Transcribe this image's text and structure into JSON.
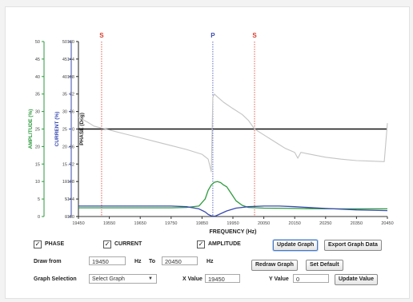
{
  "chart_data": {
    "type": "line",
    "xlabel": "FREQUENCY (Hz)",
    "xlim": [
      19450,
      20450
    ],
    "x_ticks": [
      19450,
      19550,
      19650,
      19750,
      19850,
      19950,
      20050,
      20150,
      20250,
      20350,
      20450
    ],
    "axes": {
      "amplitude": {
        "label": "AMPLITUDE (%)",
        "color": "#2e9a3e",
        "ticks": [
          0,
          5,
          10,
          15,
          20,
          25,
          30,
          35,
          40,
          45,
          50
        ],
        "ylim": [
          0,
          50
        ]
      },
      "current": {
        "label": "CURRENT (%)",
        "color": "#3a4bb0",
        "ticks": [
          0,
          5,
          10,
          15,
          20,
          25,
          30,
          35,
          40,
          45,
          50
        ],
        "ylim": [
          0,
          50
        ]
      },
      "phase": {
        "label": "PHASE (Deg)",
        "color": "#222222",
        "ticks": [
          -180,
          -144,
          -108,
          -72,
          -36,
          0,
          36,
          72,
          108,
          144,
          180
        ],
        "ylim": [
          -180,
          180
        ]
      }
    },
    "markers": [
      {
        "label": "S",
        "x": 19525,
        "color": "#d63a2a"
      },
      {
        "label": "P",
        "x": 19885,
        "color": "#3a4bb0"
      },
      {
        "label": "S",
        "x": 20020,
        "color": "#d63a2a"
      }
    ],
    "series": [
      {
        "axis": "phase",
        "color": "#c4c4c4",
        "x": [
          19450,
          19480,
          19500,
          19550,
          19600,
          19650,
          19700,
          19750,
          19800,
          19850,
          19870,
          19880,
          19885,
          19890,
          19900,
          19920,
          19950,
          19980,
          20000,
          20020,
          20050,
          20080,
          20100,
          20120,
          20150,
          20160,
          20170,
          20200,
          20250,
          20300,
          20350,
          20400,
          20440,
          20450
        ],
        "y": [
          24,
          14,
          6,
          -2,
          -10,
          -18,
          -26,
          -34,
          -42,
          -52,
          -62,
          -88,
          65,
          72,
          66,
          55,
          42,
          30,
          18,
          0,
          -12,
          -24,
          -32,
          -40,
          -48,
          -60,
          -48,
          -52,
          -58,
          -62,
          -65,
          -66,
          -67,
          12
        ]
      },
      {
        "axis": "amplitude",
        "color": "#2e9a3e",
        "x": [
          19450,
          19550,
          19650,
          19750,
          19800,
          19840,
          19860,
          19870,
          19880,
          19890,
          19900,
          19910,
          19920,
          19930,
          19945,
          19960,
          19980,
          20000,
          20050,
          20150,
          20250,
          20350,
          20450
        ],
        "y": [
          2.5,
          2.5,
          2.5,
          2.5,
          2.6,
          3.0,
          5.0,
          7.5,
          9.0,
          9.8,
          10.0,
          9.7,
          9.0,
          8.5,
          6.5,
          4.5,
          3.2,
          2.6,
          2.4,
          2.3,
          2.2,
          2.2,
          2.2
        ]
      },
      {
        "axis": "current",
        "color": "#3a4bb0",
        "x": [
          19450,
          19500,
          19550,
          19650,
          19750,
          19800,
          19840,
          19860,
          19870,
          19880,
          19890,
          19895,
          19910,
          19930,
          19960,
          20000,
          20050,
          20100,
          20150,
          20250,
          20350,
          20450
        ],
        "y": [
          3.0,
          3.0,
          3.0,
          3.0,
          3.0,
          2.8,
          2.2,
          1.3,
          0.6,
          0.2,
          0.1,
          0.2,
          0.8,
          1.6,
          2.4,
          2.8,
          3.0,
          3.0,
          2.8,
          2.3,
          1.9,
          1.7
        ]
      }
    ]
  },
  "controls": {
    "phase_label": "PHASE",
    "current_label": "CURRENT",
    "amplitude_label": "AMPLITUDE",
    "check_mark": "✓",
    "update_graph": "Update Graph",
    "export_graph_data": "Export Graph Data",
    "draw_from_label": "Draw from",
    "from_value": "19450",
    "hz_label": "Hz",
    "to_label": "To",
    "to_value": "20450",
    "redraw_graph": "Redraw Graph",
    "set_default": "Set Default",
    "graph_selection_label": "Graph Selection",
    "graph_selection_value": "Select Graph",
    "x_value_label": "X Value",
    "x_value": "19450",
    "y_value_label": "Y Value",
    "y_value": "0",
    "update_value": "Update Value"
  }
}
